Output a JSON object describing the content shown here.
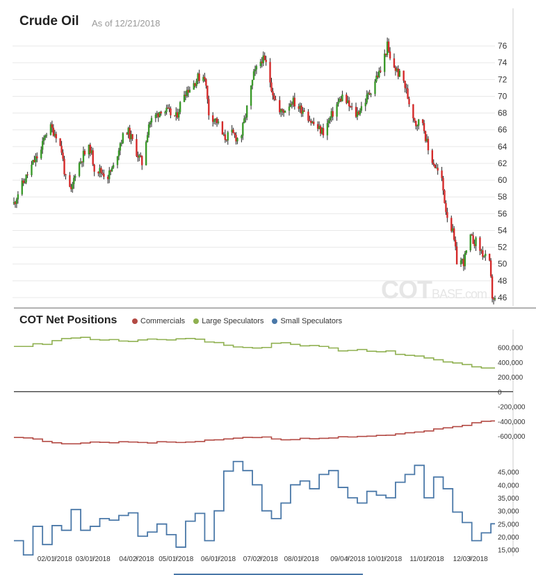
{
  "header": {
    "title": "Crude Oil",
    "as_of": "As of 12/21/2018"
  },
  "cot": {
    "title": "COT Net Positions"
  },
  "watermark": {
    "main": "COT",
    "sub": "BASE.com"
  },
  "colors": {
    "up": "#3a9a2a",
    "down": "#d42a2a",
    "wick": "#222222",
    "commercials": "#b34a44",
    "large": "#8fb050",
    "small": "#4a78a8",
    "grid": "#e8e8e8"
  },
  "chart_data": [
    {
      "type": "candlestick",
      "title": "Crude Oil",
      "ylim": [
        45,
        77
      ],
      "yticks": [
        46,
        48,
        50,
        52,
        54,
        56,
        58,
        60,
        62,
        64,
        66,
        68,
        70,
        72,
        74,
        76
      ],
      "close_path": [
        [
          "2018-01-02",
          57.2
        ],
        [
          "2018-01-05",
          58.5
        ],
        [
          "2018-01-10",
          60.0
        ],
        [
          "2018-01-16",
          62.0
        ],
        [
          "2018-01-22",
          63.5
        ],
        [
          "2018-01-25",
          65.6
        ],
        [
          "2018-01-29",
          66.2
        ],
        [
          "2018-02-02",
          65.5
        ],
        [
          "2018-02-06",
          63.5
        ],
        [
          "2018-02-09",
          60.0
        ],
        [
          "2018-02-13",
          58.5
        ],
        [
          "2018-02-16",
          61.0
        ],
        [
          "2018-02-22",
          63.0
        ],
        [
          "2018-02-27",
          63.8
        ],
        [
          "2018-03-02",
          61.5
        ],
        [
          "2018-03-07",
          61.0
        ],
        [
          "2018-03-12",
          60.5
        ],
        [
          "2018-03-16",
          61.5
        ],
        [
          "2018-03-21",
          64.5
        ],
        [
          "2018-03-26",
          66.0
        ],
        [
          "2018-03-29",
          65.0
        ],
        [
          "2018-04-03",
          63.0
        ],
        [
          "2018-04-06",
          62.0
        ],
        [
          "2018-04-11",
          66.8
        ],
        [
          "2018-04-17",
          67.8
        ],
        [
          "2018-04-20",
          68.5
        ],
        [
          "2018-04-26",
          68.0
        ],
        [
          "2018-05-01",
          67.5
        ],
        [
          "2018-05-07",
          70.5
        ],
        [
          "2018-05-11",
          71.0
        ],
        [
          "2018-05-17",
          72.2
        ],
        [
          "2018-05-22",
          72.5
        ],
        [
          "2018-05-25",
          68.0
        ],
        [
          "2018-05-31",
          67.0
        ],
        [
          "2018-06-05",
          65.0
        ],
        [
          "2018-06-11",
          65.5
        ],
        [
          "2018-06-15",
          65.0
        ],
        [
          "2018-06-18",
          65.5
        ],
        [
          "2018-06-22",
          68.5
        ],
        [
          "2018-06-27",
          72.5
        ],
        [
          "2018-07-03",
          74.5
        ],
        [
          "2018-07-06",
          73.8
        ],
        [
          "2018-07-11",
          70.5
        ],
        [
          "2018-07-16",
          68.0
        ],
        [
          "2018-07-20",
          68.5
        ],
        [
          "2018-07-25",
          69.5
        ],
        [
          "2018-07-31",
          68.5
        ],
        [
          "2018-08-03",
          68.5
        ],
        [
          "2018-08-08",
          67.0
        ],
        [
          "2018-08-14",
          66.0
        ],
        [
          "2018-08-17",
          65.8
        ],
        [
          "2018-08-21",
          67.0
        ],
        [
          "2018-08-27",
          69.0
        ],
        [
          "2018-08-31",
          70.0
        ],
        [
          "2018-09-05",
          68.8
        ],
        [
          "2018-09-10",
          67.8
        ],
        [
          "2018-09-13",
          68.5
        ],
        [
          "2018-09-18",
          69.8
        ],
        [
          "2018-09-21",
          70.8
        ],
        [
          "2018-09-25",
          72.3
        ],
        [
          "2018-09-28",
          73.0
        ],
        [
          "2018-10-03",
          76.0
        ],
        [
          "2018-10-05",
          74.3
        ],
        [
          "2018-10-10",
          73.0
        ],
        [
          "2018-10-15",
          71.8
        ],
        [
          "2018-10-19",
          69.3
        ],
        [
          "2018-10-24",
          66.8
        ],
        [
          "2018-10-29",
          67.0
        ],
        [
          "2018-11-02",
          63.5
        ],
        [
          "2018-11-07",
          61.7
        ],
        [
          "2018-11-12",
          59.9
        ],
        [
          "2018-11-15",
          56.5
        ],
        [
          "2018-11-20",
          53.7
        ],
        [
          "2018-11-23",
          50.4
        ],
        [
          "2018-11-28",
          50.3
        ],
        [
          "2018-12-03",
          53.0
        ],
        [
          "2018-12-07",
          52.6
        ],
        [
          "2018-12-12",
          51.2
        ],
        [
          "2018-12-17",
          49.9
        ],
        [
          "2018-12-19",
          46.2
        ],
        [
          "2018-12-21",
          45.6
        ]
      ]
    },
    {
      "type": "line",
      "title": "COT Net Positions",
      "series_names": [
        "Commercials",
        "Large Speculators",
        "Small Speculators"
      ],
      "x_ticks": [
        "02/01/2018",
        "03/01/2018",
        "04/02/2018",
        "05/01/2018",
        "06/01/2018",
        "07/02/2018",
        "08/01/2018",
        "09/04/2018",
        "10/01/2018",
        "11/01/2018",
        "12/03/2018"
      ],
      "x_tick_dates": [
        "2018-02-01",
        "2018-03-01",
        "2018-04-02",
        "2018-05-01",
        "2018-06-01",
        "2018-07-02",
        "2018-08-01",
        "2018-09-04",
        "2018-10-01",
        "2018-11-01",
        "2018-12-03"
      ],
      "upper_panel": {
        "ylim": [
          -720000,
          840000
        ],
        "yticks": [
          600000,
          400000,
          200000,
          0,
          -200000,
          -400000,
          -600000
        ],
        "ytick_labels": [
          "600,000",
          "400,000",
          "200,000",
          "0",
          "-200,000",
          "-400,000",
          "-600,000"
        ]
      },
      "lower_panel": {
        "ylim": [
          12500,
          50000
        ],
        "yticks": [
          45000,
          40000,
          35000,
          30000,
          25000,
          20000,
          15000
        ],
        "ytick_labels": [
          "45,000",
          "40,000",
          "35,000",
          "30,000",
          "25,000",
          "20,000",
          "15,000"
        ]
      },
      "dates": [
        "2018-01-02",
        "2018-01-09",
        "2018-01-16",
        "2018-01-23",
        "2018-01-30",
        "2018-02-06",
        "2018-02-13",
        "2018-02-20",
        "2018-02-27",
        "2018-03-06",
        "2018-03-13",
        "2018-03-20",
        "2018-03-27",
        "2018-04-03",
        "2018-04-10",
        "2018-04-17",
        "2018-04-24",
        "2018-05-01",
        "2018-05-08",
        "2018-05-15",
        "2018-05-22",
        "2018-05-29",
        "2018-06-05",
        "2018-06-12",
        "2018-06-19",
        "2018-06-26",
        "2018-07-03",
        "2018-07-10",
        "2018-07-17",
        "2018-07-24",
        "2018-07-31",
        "2018-08-07",
        "2018-08-14",
        "2018-08-21",
        "2018-08-28",
        "2018-09-04",
        "2018-09-11",
        "2018-09-18",
        "2018-09-25",
        "2018-10-02",
        "2018-10-09",
        "2018-10-16",
        "2018-10-23",
        "2018-10-30",
        "2018-11-06",
        "2018-11-13",
        "2018-11-20",
        "2018-11-27",
        "2018-12-04",
        "2018-12-11",
        "2018-12-18"
      ],
      "series": [
        {
          "name": "Large Speculators",
          "values": [
            612000,
            612000,
            648000,
            640000,
            690000,
            718000,
            725000,
            735000,
            705000,
            698000,
            705000,
            685000,
            680000,
            700000,
            712000,
            705000,
            700000,
            715000,
            720000,
            710000,
            672000,
            664000,
            628000,
            605000,
            598000,
            590000,
            598000,
            655000,
            662000,
            640000,
            620000,
            624000,
            612000,
            591000,
            552000,
            558000,
            570000,
            547000,
            540000,
            552000,
            505000,
            492000,
            482000,
            456000,
            432000,
            402000,
            388000,
            367000,
            337000,
            320000,
            320000
          ]
        },
        {
          "name": "Commercials",
          "values": [
            -618000,
            -624000,
            -640000,
            -672000,
            -690000,
            -704000,
            -704000,
            -694000,
            -680000,
            -684000,
            -690000,
            -676000,
            -680000,
            -686000,
            -694000,
            -676000,
            -680000,
            -686000,
            -680000,
            -674000,
            -654000,
            -650000,
            -638000,
            -628000,
            -617000,
            -620000,
            -612000,
            -639000,
            -650000,
            -648000,
            -630000,
            -636000,
            -630000,
            -625000,
            -609000,
            -612000,
            -604000,
            -601000,
            -590000,
            -588000,
            -570000,
            -555000,
            -545000,
            -530000,
            -503000,
            -488000,
            -472000,
            -455000,
            -420000,
            -400000,
            -395000
          ]
        },
        {
          "name": "Small Speculators",
          "values": [
            18500,
            13000,
            24000,
            17000,
            24300,
            22500,
            30500,
            22500,
            24000,
            27000,
            26400,
            28200,
            29200,
            20200,
            21800,
            24900,
            20800,
            16000,
            26000,
            29000,
            18500,
            30000,
            45300,
            49000,
            45500,
            40000,
            30000,
            27000,
            33000,
            40000,
            41500,
            38500,
            44000,
            45500,
            39000,
            35000,
            33000,
            37500,
            36000,
            35000,
            41000,
            44000,
            47500,
            35000,
            43000,
            38500,
            29500,
            25500,
            18500,
            21500,
            25000
          ]
        }
      ]
    }
  ]
}
